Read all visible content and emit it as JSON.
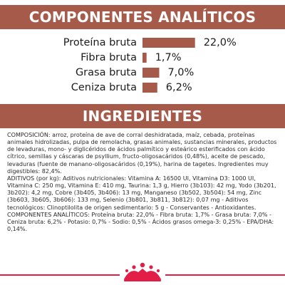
{
  "sections": {
    "analiticos_title": "COMPONENTES ANALÍTICOS",
    "ingredientes_title": "INGREDIENTES"
  },
  "colors": {
    "band": "#a65a4a",
    "bar": "#a65a4a",
    "text": "#2a2a2a",
    "brand_red": "#e11d48"
  },
  "chart_data": {
    "type": "bar",
    "orientation": "horizontal",
    "categories": [
      "Proteína bruta",
      "Fibra bruta",
      "Grasa bruta",
      "Ceniza bruta"
    ],
    "values": [
      22.0,
      1.7,
      7.0,
      6.2
    ],
    "value_labels": [
      "22,0%",
      "1,7%",
      "7,0%",
      "6,2%"
    ],
    "title": "COMPONENTES ANALÍTICOS",
    "xlabel": "",
    "ylabel": "",
    "unit": "%",
    "grid": false,
    "legend": "none"
  },
  "ingredientes": {
    "paragraphs": [
      "COMPOSICIÓN: arroz, proteína de ave de corral deshidratada, maíz, cebada, proteínas animales hidrolizadas, pulpa de remolacha, grasas animales, sustancias minerales, productos de levaduras, mono- y diglicéridos de ácidos palmítico y esteárico esterificados con ácido cítrico, semillas y cáscaras de psyllium, fructo-oligosacáridos (0,48%), aceite de pescado, levaduras (fuente de manano-oligosacáridos (0,19%), harina de tagetes. Ingredientes muy digestibles: 82,4%.",
      "ADITIVOS (por kg): Aditivos nutricionales: Vitamina A: 16500 UI, Vitamina D3: 1000 UI, Vitamina C: 250 mg, Vitamina E: 410 mg, Taurina: 1,3 g, Hierro (3b103): 42 mg, Yodo (3b201, 3b202): 4,2 mg, Cobre (3b405, 3b406): 13 mg, Manganeso (3b502, 3b504): 54 mg, Zinc (3b603, 3b605, 3b606): 133 mg, Selenio (3b801, 3b811, 3b812): 0,07 mg - Aditivos tecnológicos: Clinoptilolita de origen sedimentario: 5 g - Conservantes - Antioxidantes.",
      "COMPONENTES ANALÍTICOS: Proteína bruta: 22,0% - Fibra bruta: 1,7% - Grasa bruta: 7,0% - Ceniza bruta: 6,2% - Potasio: 0,7% - Sodio: 0,5% - Ácidos grasos omega-3: 0,25% - EPA/DHA: 0,14%."
    ]
  },
  "brand": {
    "logo_icon": "royal-canin-crown-icon"
  }
}
